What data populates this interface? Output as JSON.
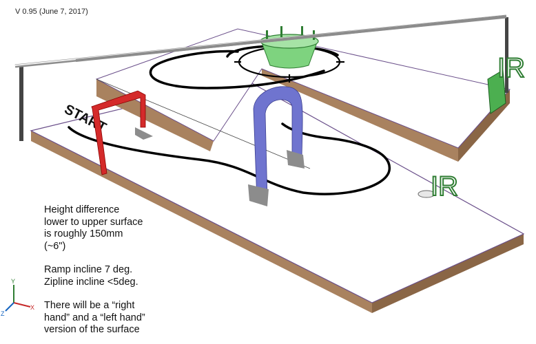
{
  "version_text": "V 0.95 (June 7, 2017)",
  "start_text": "START",
  "ir_labels": [
    "IR",
    "IR"
  ],
  "notes": [
    {
      "lines": [
        "Height difference",
        "lower to upper surface",
        "is roughly 150mm",
        "(~6\")"
      ]
    },
    {
      "lines": [
        "Ramp incline 7 deg.",
        "Zipline incline <5deg."
      ]
    },
    {
      "lines": [
        "There will be a “right",
        "hand” and a “left hand”",
        "version of the surface"
      ]
    }
  ],
  "axes": {
    "y": "Y",
    "x": "X",
    "z": "Z"
  },
  "colors": {
    "wood": "#a9825f",
    "wood_dark": "#8a6646",
    "red_gate": "#d42a2a",
    "blue_arch": "#6f74cf",
    "green": "#4caf50",
    "zipline": "#cfcfcf"
  }
}
